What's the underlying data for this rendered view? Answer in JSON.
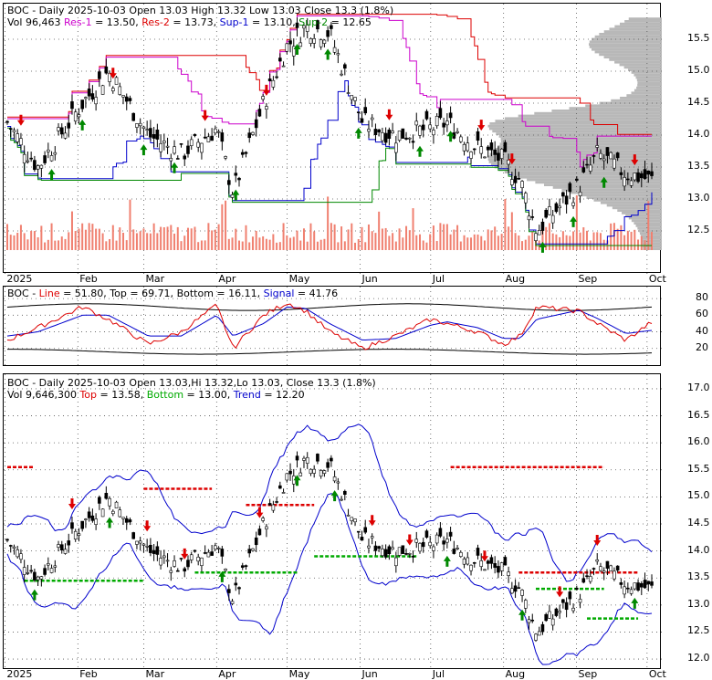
{
  "ticker": "BOC",
  "colors": {
    "res1": "#cc00cc",
    "res2": "#dd0000",
    "sup1": "#0000cc",
    "sup2": "#008800",
    "volume": "#f08070",
    "up_arrow": "#008800",
    "down_arrow": "#dd0000",
    "profile": "#b8b8b8",
    "line": "#dd0000",
    "top_line": "#000000",
    "signal": "#0000cc",
    "bbands": "#0000cc",
    "top": "#dd0000",
    "bottom": "#00aa00"
  },
  "panel1": {
    "header_title": "BOC - Daily 2025-10-03 Open 13.03  High 13.32  Low 13.03  Close 13.3 (1.8%)",
    "vol_text": "Vol 96,463",
    "res1_label": "Res-1",
    "res1_value": " = 13.50, ",
    "res2_label": "Res-2",
    "res2_value": " = 13.73, ",
    "sup1_label": "Sup-1",
    "sup1_value": " = 13.10, ",
    "sup2_label": "Sup-2",
    "sup2_value": " = 12.65",
    "y_ticks": [
      "15.5",
      "15.0",
      "14.5",
      "14.0",
      "13.5",
      "13.0",
      "12.5"
    ]
  },
  "panel2": {
    "prefix": "BOC - ",
    "line_label": "Line",
    "line_value": " = 51.80, ",
    "top_label": "Top",
    "top_value": " = 69.71, ",
    "bottom_label": "Bottom",
    "bottom_value": " = 16.11, ",
    "signal_label": "Signal",
    "signal_value": " = 41.76",
    "y_ticks": [
      "80",
      "60",
      "40",
      "20"
    ]
  },
  "panel3": {
    "header_title": "BOC - Daily 2025-10-03 Open 13.03,Hi 13.32,Lo 13.03, Close 13.3 (1.8%)",
    "vol_text": "Vol 9,646,300",
    "top_label": "Top",
    "top_value": " = 13.58, ",
    "bottom_label": "Bottom",
    "bottom_value": " = 13.00, ",
    "trend_label": "Trend",
    "trend_value": " = 12.20",
    "y_ticks": [
      "17.0",
      "16.5",
      "16.0",
      "15.5",
      "15.0",
      "14.5",
      "14.0",
      "13.5",
      "13.0",
      "12.5",
      "12.0"
    ]
  },
  "x_axis_labels": [
    "2025",
    "Feb",
    "Mar",
    "Apr",
    "May",
    "Jun",
    "Jul",
    "Aug",
    "Sep",
    "Oct"
  ],
  "chart_data": {
    "type": "line",
    "title": "BOC - Daily 2025-10-03",
    "dates": [
      "2025-01-02",
      "2025-01-15",
      "2025-02-03",
      "2025-02-14",
      "2025-03-03",
      "2025-03-17",
      "2025-04-01",
      "2025-04-08",
      "2025-04-21",
      "2025-05-01",
      "2025-05-09",
      "2025-05-19",
      "2025-06-02",
      "2025-06-16",
      "2025-07-01",
      "2025-07-08",
      "2025-07-21",
      "2025-08-01",
      "2025-08-08",
      "2025-08-15",
      "2025-09-02",
      "2025-09-10",
      "2025-09-22",
      "2025-10-03"
    ],
    "close": [
      14.2,
      13.5,
      14.5,
      15.0,
      14.0,
      13.7,
      14.1,
      13.1,
      14.5,
      15.4,
      15.7,
      15.6,
      14.2,
      14.0,
      14.1,
      14.2,
      13.8,
      13.6,
      13.3,
      12.5,
      13.2,
      13.7,
      13.4,
      13.3
    ],
    "ylim": [
      12.2,
      15.8
    ],
    "resistance": {
      "res1": 13.5,
      "res2": 13.73
    },
    "support": {
      "sup1": 13.1,
      "sup2": 12.65
    },
    "latest": {
      "open": 13.03,
      "high": 13.32,
      "low": 13.03,
      "close": 13.3,
      "change_pct": 1.8,
      "volume": 96463
    },
    "oscillator": {
      "line": [
        30,
        45,
        70,
        55,
        25,
        40,
        72,
        20,
        60,
        75,
        65,
        40,
        20,
        35,
        55,
        50,
        40,
        25,
        35,
        70,
        65,
        50,
        30,
        51.8
      ],
      "signal": [
        35,
        40,
        60,
        60,
        35,
        35,
        60,
        35,
        50,
        70,
        68,
        50,
        30,
        32,
        48,
        52,
        45,
        32,
        32,
        55,
        66,
        56,
        38,
        41.76
      ],
      "top": 69.71,
      "bottom": 16.11,
      "ylim": [
        0,
        90
      ]
    },
    "bbands_panel": {
      "ylim": [
        11.9,
        17.1
      ],
      "top": 13.58,
      "bottom": 13.0,
      "trend": 12.2,
      "volume": 9646300
    }
  }
}
